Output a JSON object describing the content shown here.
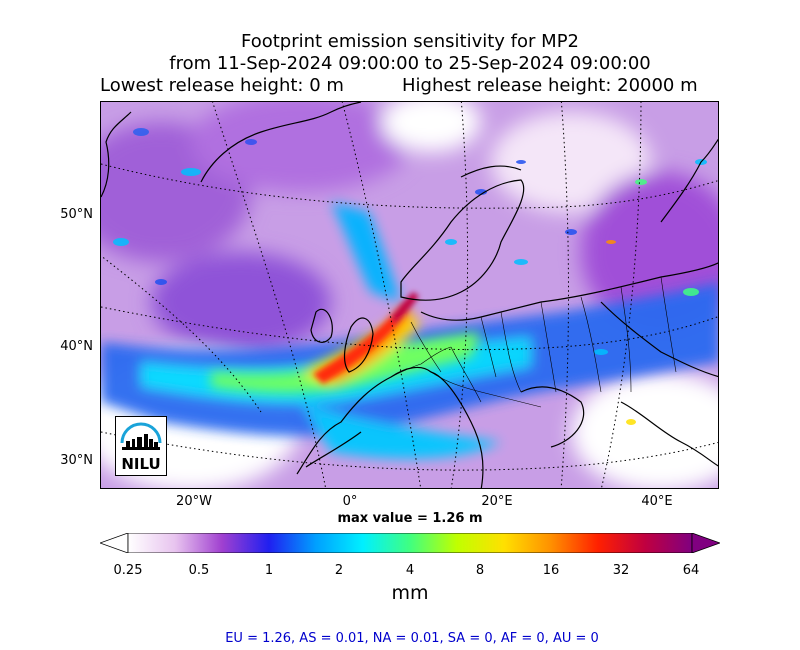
{
  "header": {
    "title": "Footprint emission sensitivity for MP2",
    "period": "from 11-Sep-2024 09:00:00 to 25-Sep-2024 09:00:00",
    "lowest_release": "Lowest release height: 0 m",
    "highest_release": "Highest release height: 20000 m"
  },
  "map": {
    "lat_labels": [
      "50°N",
      "40°N",
      "30°N"
    ],
    "lon_labels": [
      "20°W",
      "0°",
      "20°E",
      "40°E"
    ],
    "logo_text": "NILU",
    "colors": {
      "land_outline": "#000000",
      "graticule": "#000000",
      "logo_blue": "#1aa3d9"
    }
  },
  "max_value": "max value = 1.26 m",
  "colorbar": {
    "ticks": [
      "0.25",
      "0.5",
      "1",
      "2",
      "4",
      "8",
      "16",
      "32",
      "64"
    ],
    "unit": "mm",
    "colors": [
      "#ffffff",
      "#e8c4ef",
      "#a040d0",
      "#2020f0",
      "#00a0ff",
      "#00f0ff",
      "#40ff80",
      "#c0ff00",
      "#ffe000",
      "#ff9000",
      "#ff2000",
      "#c00040",
      "#800080"
    ]
  },
  "region_summary": "EU = 1.26,  AS = 0.01,  NA = 0.01,  SA = 0,  AF = 0,  AU = 0"
}
